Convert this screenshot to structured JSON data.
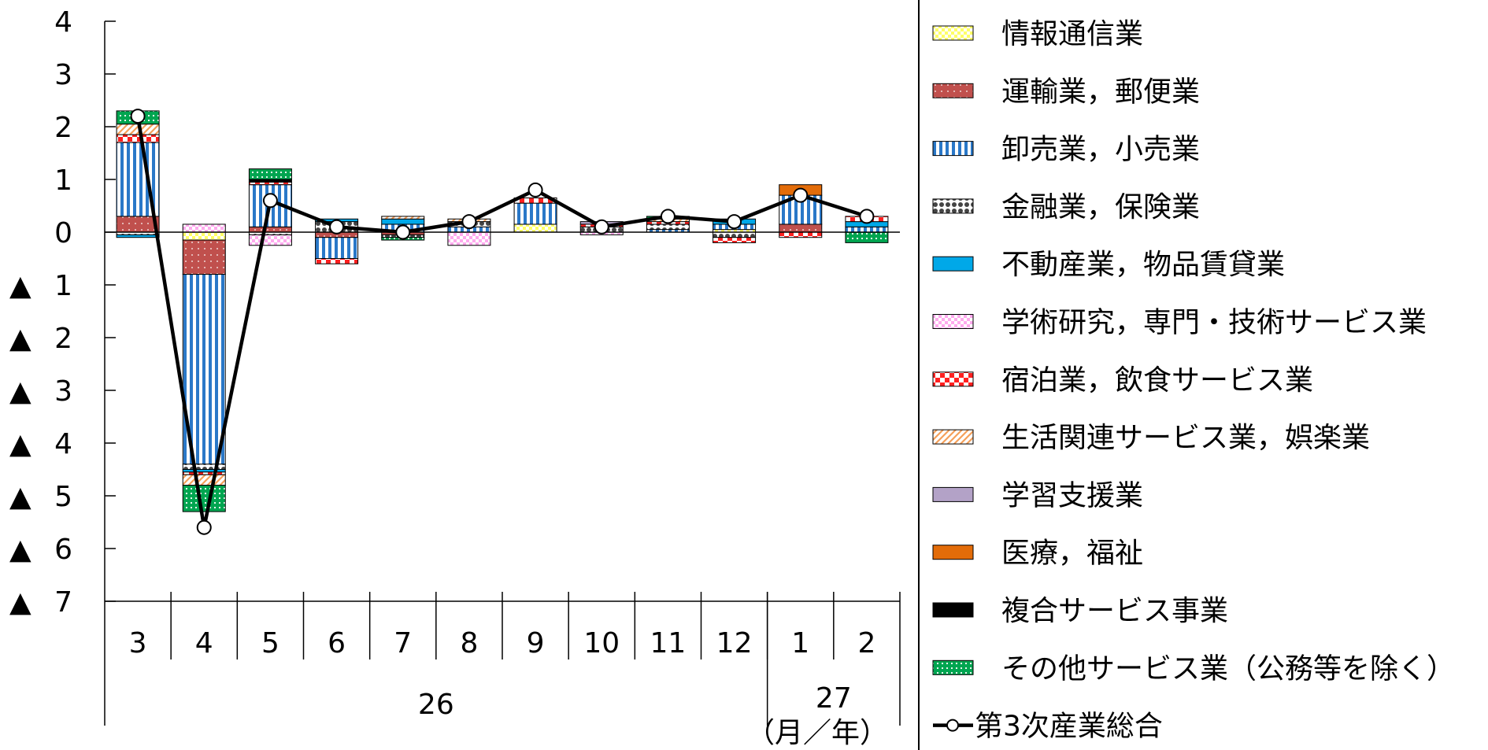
{
  "chart_data": {
    "type": "bar",
    "stacked": true,
    "ylim": [
      -7,
      4
    ],
    "y_ticks": [
      {
        "value": 4,
        "label": "4"
      },
      {
        "value": 3,
        "label": "3"
      },
      {
        "value": 2,
        "label": "2"
      },
      {
        "value": 1,
        "label": "1"
      },
      {
        "value": 0,
        "label": "0"
      },
      {
        "value": -1,
        "label": "▲ 1"
      },
      {
        "value": -2,
        "label": "▲ 2"
      },
      {
        "value": -3,
        "label": "▲ 3"
      },
      {
        "value": -4,
        "label": "▲ 4"
      },
      {
        "value": -5,
        "label": "▲ 5"
      },
      {
        "value": -6,
        "label": "▲ 6"
      },
      {
        "value": -7,
        "label": "▲ 7"
      }
    ],
    "categories": [
      "3",
      "4",
      "5",
      "6",
      "7",
      "8",
      "9",
      "10",
      "11",
      "12",
      "1",
      "2"
    ],
    "year_groups": [
      {
        "label": "26",
        "span": 10
      },
      {
        "label": "27",
        "span": 2
      }
    ],
    "x_unit": "（月／年）",
    "series": [
      {
        "name": "情報通信業",
        "color": "#ffff66",
        "values": [
          0.0,
          -0.15,
          0.0,
          0.0,
          0.0,
          0.0,
          0.15,
          0.0,
          0.0,
          0.05,
          0.0,
          0.0
        ]
      },
      {
        "name": "運輸業，郵便業",
        "color": "#c0504d",
        "values": [
          0.3,
          -0.65,
          0.1,
          -0.1,
          -0.05,
          0.0,
          0.0,
          0.0,
          0.0,
          0.0,
          0.15,
          0.0
        ]
      },
      {
        "name": "卸売業，小売業",
        "color": "#2a78c8",
        "values": [
          1.4,
          -3.6,
          0.8,
          -0.4,
          0.15,
          0.1,
          0.4,
          0.0,
          0.05,
          0.1,
          0.55,
          0.1
        ]
      },
      {
        "name": "金融業，保険業",
        "color": "#444444",
        "values": [
          -0.05,
          -0.1,
          -0.05,
          0.2,
          -0.05,
          0.1,
          0.0,
          0.1,
          0.1,
          -0.1,
          0.0,
          0.0
        ]
      },
      {
        "name": "不動産業，物品賃貸業",
        "color": "#00a8e8",
        "values": [
          -0.05,
          -0.05,
          0.0,
          0.05,
          0.1,
          0.0,
          0.0,
          0.0,
          0.0,
          0.1,
          0.0,
          0.1
        ]
      },
      {
        "name": "学術研究，専門・技術サービス業",
        "color": "#ffaaee",
        "values": [
          0.0,
          0.15,
          -0.2,
          0.0,
          0.0,
          -0.25,
          0.0,
          -0.05,
          0.0,
          0.0,
          0.0,
          0.0
        ]
      },
      {
        "name": "宿泊業，飲食サービス業",
        "color": "#ff2020",
        "values": [
          0.15,
          -0.05,
          0.05,
          -0.1,
          0.0,
          0.0,
          0.1,
          0.05,
          0.05,
          -0.1,
          -0.1,
          0.1
        ]
      },
      {
        "name": "生活関連サービス業，娯楽業",
        "color": "#f5a05a",
        "values": [
          0.2,
          -0.2,
          0.0,
          0.0,
          0.05,
          0.05,
          0.0,
          0.0,
          0.05,
          0.0,
          0.0,
          0.0
        ]
      },
      {
        "name": "学習支援業",
        "color": "#b3a2c7",
        "values": [
          0.0,
          0.0,
          0.0,
          0.0,
          0.0,
          0.0,
          0.0,
          0.05,
          0.0,
          0.0,
          0.0,
          0.0
        ]
      },
      {
        "name": "医療，福祉",
        "color": "#e36c09",
        "values": [
          0.0,
          0.0,
          0.0,
          0.0,
          0.0,
          0.0,
          0.0,
          0.0,
          0.0,
          0.0,
          0.2,
          0.0
        ]
      },
      {
        "name": "複合サービス事業",
        "color": "#000000",
        "values": [
          0.0,
          0.0,
          0.05,
          0.0,
          0.0,
          0.0,
          0.0,
          0.0,
          0.0,
          0.0,
          0.0,
          0.0
        ]
      },
      {
        "name": "その他サービス業（公務等を除く）",
        "color": "#00a550",
        "values": [
          0.25,
          -0.5,
          0.2,
          0.0,
          -0.05,
          0.0,
          0.0,
          0.0,
          0.05,
          0.0,
          0.0,
          -0.2
        ]
      }
    ],
    "line_series": {
      "name": "第3次産業総合",
      "values": [
        2.2,
        -5.6,
        0.6,
        0.1,
        0.0,
        0.2,
        0.8,
        0.1,
        0.3,
        0.2,
        0.7,
        0.3
      ]
    },
    "grid": false,
    "legend_position": "right"
  }
}
